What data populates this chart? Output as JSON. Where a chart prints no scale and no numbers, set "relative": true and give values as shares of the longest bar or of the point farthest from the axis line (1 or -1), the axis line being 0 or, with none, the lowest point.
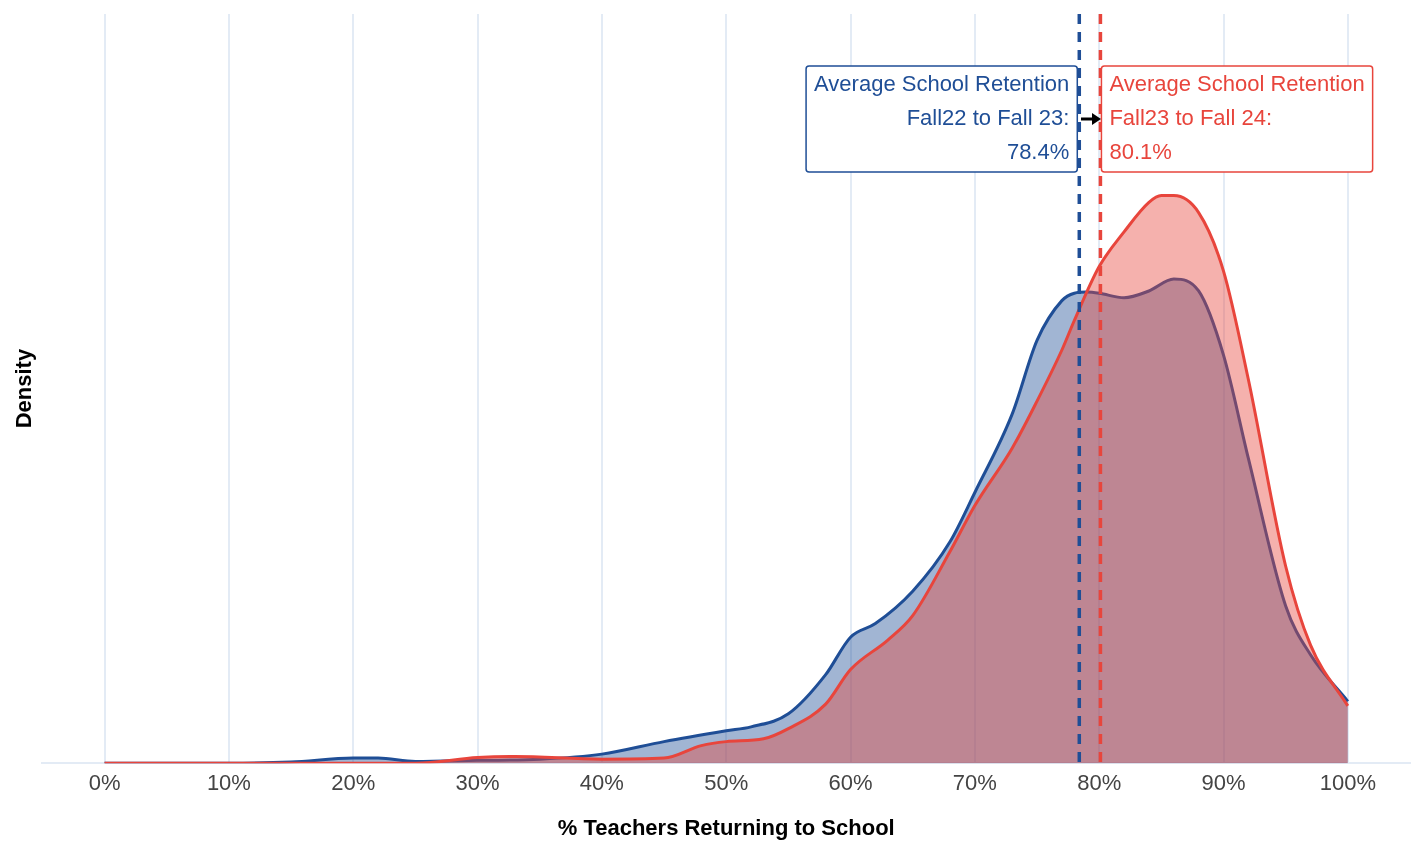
{
  "chart_data": {
    "type": "area",
    "relative": true,
    "xlabel": "% Teachers Returning to School",
    "ylabel": "Density",
    "xlim": [
      -5,
      105
    ],
    "xticks": [
      {
        "value": 0,
        "label": "0%"
      },
      {
        "value": 10,
        "label": "10%"
      },
      {
        "value": 20,
        "label": "20%"
      },
      {
        "value": 30,
        "label": "30%"
      },
      {
        "value": 40,
        "label": "40%"
      },
      {
        "value": 50,
        "label": "50%"
      },
      {
        "value": 60,
        "label": "60%"
      },
      {
        "value": 70,
        "label": "70%"
      },
      {
        "value": 80,
        "label": "80%"
      },
      {
        "value": 90,
        "label": "90%"
      },
      {
        "value": 100,
        "label": "100%"
      }
    ],
    "grid": "x",
    "legend": false,
    "marker": "none",
    "line_style": "solid",
    "series": [
      {
        "color": "#1f4e96",
        "x": [
          0,
          10,
          15,
          20,
          22,
          25,
          30,
          35,
          40,
          45,
          50,
          52,
          55,
          58,
          60,
          62,
          65,
          68,
          70,
          73,
          75,
          77,
          78,
          79,
          80,
          82,
          84,
          86,
          88,
          90,
          92,
          95,
          97,
          100
        ],
        "values": [
          0,
          0,
          0.002,
          0.009,
          0.009,
          0.003,
          0.005,
          0.007,
          0.016,
          0.038,
          0.057,
          0.064,
          0.087,
          0.156,
          0.222,
          0.246,
          0.303,
          0.39,
          0.477,
          0.615,
          0.745,
          0.815,
          0.828,
          0.83,
          0.828,
          0.82,
          0.832,
          0.853,
          0.832,
          0.719,
          0.537,
          0.277,
          0.191,
          0.109
        ]
      },
      {
        "color": "#e8453c",
        "x": [
          0,
          10,
          20,
          25,
          30,
          33,
          40,
          45,
          48,
          50,
          53,
          55,
          58,
          60,
          63,
          65,
          68,
          70,
          73,
          75,
          77,
          78,
          80,
          82,
          84,
          85,
          86,
          88,
          90,
          92,
          95,
          97,
          100
        ],
        "values": [
          0,
          0,
          0,
          0,
          0.01,
          0.012,
          0.007,
          0.009,
          0.031,
          0.038,
          0.043,
          0.061,
          0.104,
          0.165,
          0.217,
          0.26,
          0.373,
          0.454,
          0.555,
          0.638,
          0.728,
          0.78,
          0.875,
          0.936,
          0.988,
          1,
          1,
          0.97,
          0.867,
          0.676,
          0.347,
          0.208,
          0.101
        ]
      }
    ],
    "ref_lines": [
      {
        "axis": "x",
        "value": 78.4,
        "label": "Average School Retention\nFall22 to Fall 23:\n78.4%",
        "color": "#1f4e96",
        "line_style": "dashed"
      },
      {
        "axis": "x",
        "value": 80.1,
        "label": "Average School Retention\nFall23 to Fall 24:\n80.1%",
        "color": "#e8453c",
        "line_style": "dashed"
      }
    ]
  }
}
